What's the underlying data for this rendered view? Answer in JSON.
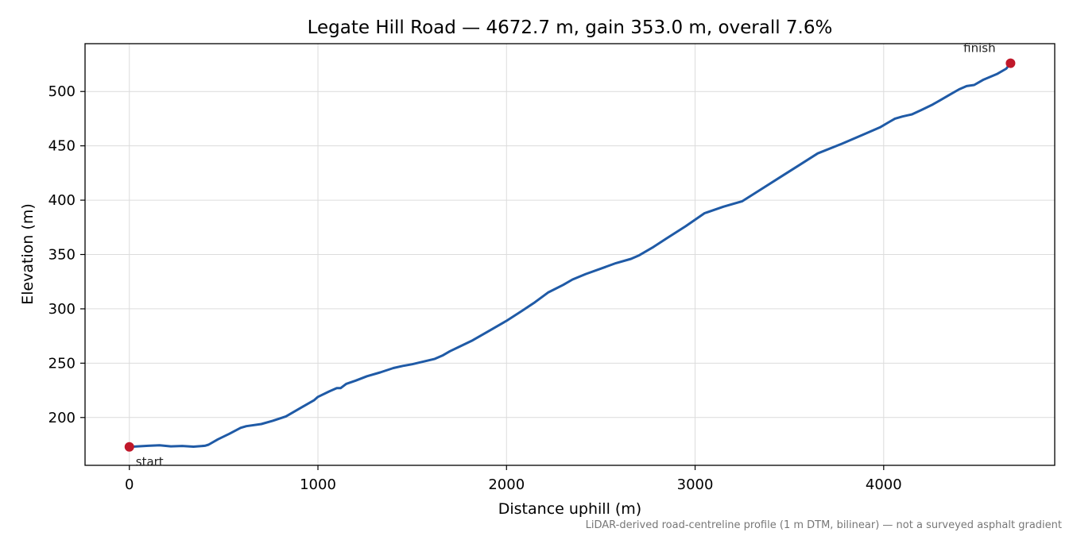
{
  "chart_data": {
    "type": "line",
    "title": "Legate Hill Road — 4672.7 m, gain 353.0 m, overall 7.6%",
    "xlabel": "Distance uphill (m)",
    "ylabel": "Elevation (m)",
    "xlim": [
      -235,
      4907
    ],
    "ylim": [
      156,
      544
    ],
    "xticks": [
      0,
      1000,
      2000,
      3000,
      4000
    ],
    "yticks": [
      200,
      250,
      300,
      350,
      400,
      450,
      500
    ],
    "grid": true,
    "line_color": "#1f5aa6",
    "marker_color": "#c0182a",
    "series": [
      {
        "x": [
          0,
          100,
          160,
          220,
          280,
          340,
          400,
          420,
          470,
          530,
          590,
          620,
          700,
          760,
          830,
          900,
          980,
          1000,
          1060,
          1100,
          1120,
          1150,
          1200,
          1260,
          1330,
          1400,
          1450,
          1500,
          1560,
          1620,
          1660,
          1700,
          1760,
          1820,
          1900,
          2000,
          2080,
          2150,
          2220,
          2300,
          2350,
          2420,
          2500,
          2580,
          2660,
          2700,
          2780,
          2850,
          2950,
          3050,
          3150,
          3250,
          3350,
          3450,
          3550,
          3650,
          3780,
          3900,
          3980,
          4030,
          4060,
          4100,
          4150,
          4200,
          4260,
          4300,
          4350,
          4400,
          4440,
          4480,
          4500,
          4530,
          4600,
          4650,
          4672.7
        ],
        "y": [
          173,
          174,
          174.5,
          173.5,
          173.8,
          173.2,
          174,
          175,
          180,
          185,
          190.5,
          192,
          194,
          197,
          201,
          208,
          216,
          219,
          224,
          227,
          227,
          231,
          234,
          238,
          241.5,
          245.5,
          247.5,
          249,
          251.5,
          254,
          257,
          261,
          266,
          271,
          279,
          289,
          298,
          306,
          315,
          322,
          327,
          332,
          337,
          342,
          346,
          349,
          357,
          365,
          376,
          388,
          394,
          399,
          410,
          421,
          432,
          443,
          452,
          461,
          467,
          472,
          475,
          477,
          479,
          483,
          488,
          492,
          497,
          502,
          505,
          506,
          508,
          511,
          516,
          521,
          526
        ]
      }
    ],
    "annotations": {
      "start_label": "start",
      "finish_label": "finish",
      "start": {
        "x": 0,
        "y": 173
      },
      "finish": {
        "x": 4672.7,
        "y": 526
      }
    },
    "footnote": "LiDAR-derived road-centreline profile (1 m DTM, bilinear) — not a surveyed asphalt gradient"
  }
}
